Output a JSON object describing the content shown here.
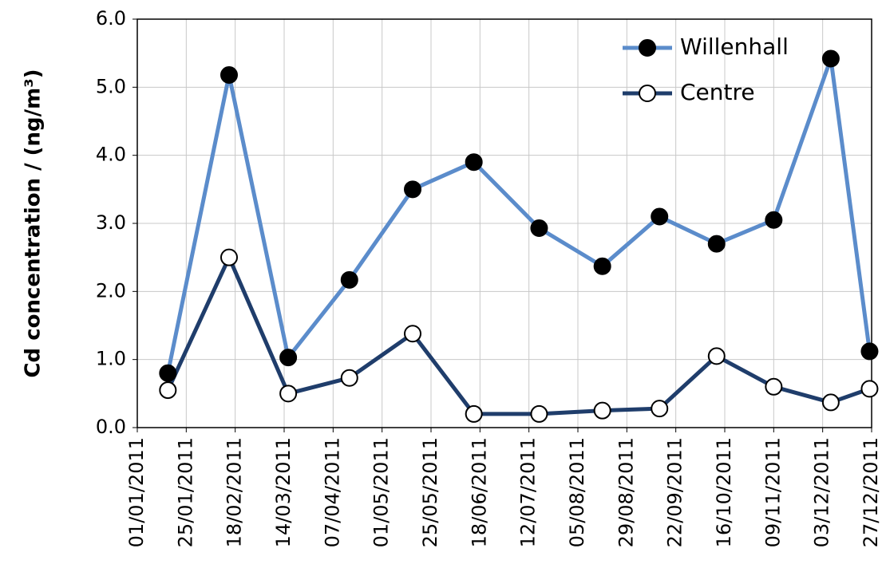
{
  "chart_data": {
    "type": "line",
    "y_label": "Cd concentration / (ng/m³)",
    "x": [
      "2011-01-16",
      "2011-02-15",
      "2011-03-16",
      "2011-04-15",
      "2011-05-16",
      "2011-06-15",
      "2011-07-17",
      "2011-08-17",
      "2011-09-14",
      "2011-10-12",
      "2011-11-09",
      "2011-12-07",
      "2011-12-26"
    ],
    "series": [
      {
        "name": "Willenhall",
        "color": "#5b8ccb",
        "marker_fill": "#000000",
        "values": [
          0.8,
          5.18,
          1.03,
          2.17,
          3.5,
          3.9,
          2.93,
          2.37,
          3.1,
          2.7,
          3.05,
          5.42,
          1.12
        ]
      },
      {
        "name": "Centre",
        "color": "#1f3d6b",
        "marker_fill": "#ffffff",
        "values": [
          0.55,
          2.5,
          0.5,
          0.73,
          1.38,
          0.2,
          0.2,
          0.25,
          0.28,
          1.05,
          0.6,
          0.37,
          0.57
        ]
      }
    ],
    "xlim": [
      "2011-01-01",
      "2011-12-27"
    ],
    "xticks": [
      {
        "value": "2011-01-01",
        "label": "01/01/2011"
      },
      {
        "value": "2011-01-25",
        "label": "25/01/2011"
      },
      {
        "value": "2011-02-18",
        "label": "18/02/2011"
      },
      {
        "value": "2011-03-14",
        "label": "14/03/2011"
      },
      {
        "value": "2011-04-07",
        "label": "07/04/2011"
      },
      {
        "value": "2011-05-01",
        "label": "01/05/2011"
      },
      {
        "value": "2011-05-25",
        "label": "25/05/2011"
      },
      {
        "value": "2011-06-18",
        "label": "18/06/2011"
      },
      {
        "value": "2011-07-12",
        "label": "12/07/2011"
      },
      {
        "value": "2011-08-05",
        "label": "05/08/2011"
      },
      {
        "value": "2011-08-29",
        "label": "29/08/2011"
      },
      {
        "value": "2011-09-22",
        "label": "22/09/2011"
      },
      {
        "value": "2011-10-16",
        "label": "16/10/2011"
      },
      {
        "value": "2011-11-09",
        "label": "09/11/2011"
      },
      {
        "value": "2011-12-03",
        "label": "03/12/2011"
      },
      {
        "value": "2011-12-27",
        "label": "27/12/2011"
      }
    ],
    "ylim": [
      0,
      6
    ],
    "yticks": [
      {
        "value": 0,
        "label": "0.0"
      },
      {
        "value": 1,
        "label": "1.0"
      },
      {
        "value": 2,
        "label": "2.0"
      },
      {
        "value": 3,
        "label": "3.0"
      },
      {
        "value": 4,
        "label": "4.0"
      },
      {
        "value": 5,
        "label": "5.0"
      },
      {
        "value": 6,
        "label": "6.0"
      }
    ],
    "grid": true,
    "legend": "top-right"
  }
}
